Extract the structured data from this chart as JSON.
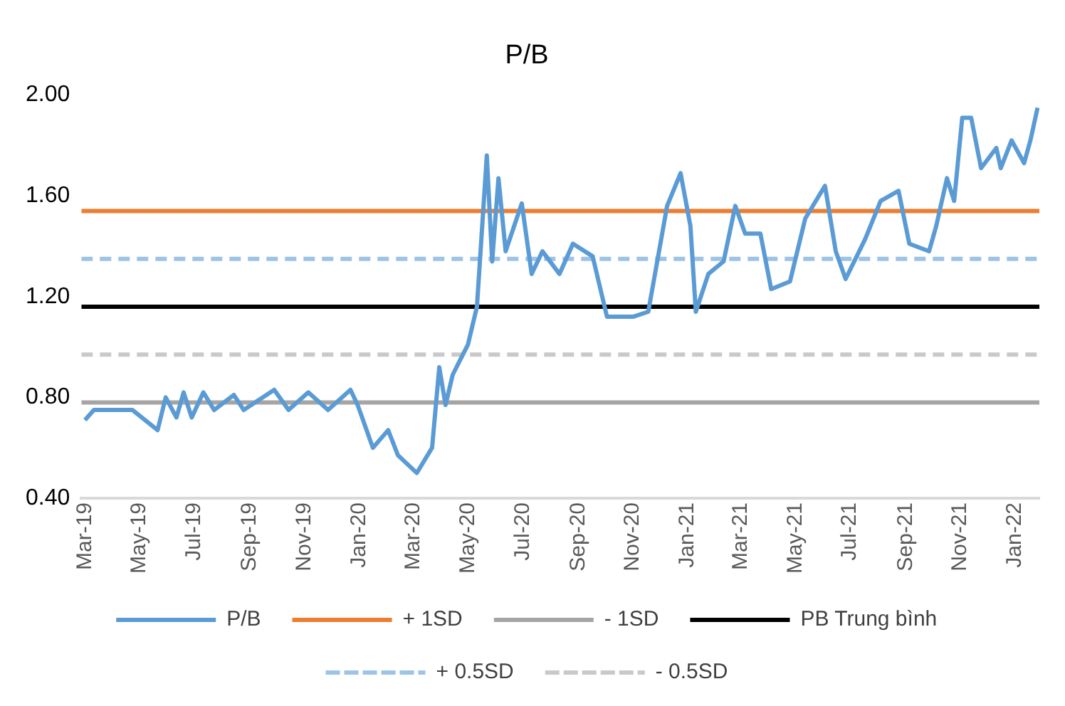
{
  "chart_data": {
    "type": "line",
    "title": "P/B",
    "x": [
      "2019-03-01",
      "2019-03-11",
      "2019-04-23",
      "2019-05-21",
      "2019-05-30",
      "2019-06-11",
      "2019-06-19",
      "2019-06-28",
      "2019-07-11",
      "2019-07-23",
      "2019-08-14",
      "2019-08-25",
      "2019-09-28",
      "2019-10-14",
      "2019-11-05",
      "2019-11-27",
      "2019-12-22",
      "2019-12-30",
      "2020-01-16",
      "2020-02-02",
      "2020-02-13",
      "2020-03-05",
      "2020-03-22",
      "2020-03-30",
      "2020-04-06",
      "2020-04-14",
      "2020-05-01",
      "2020-05-11",
      "2020-05-22",
      "2020-05-28",
      "2020-06-04",
      "2020-06-12",
      "2020-06-30",
      "2020-07-11",
      "2020-07-23",
      "2020-08-11",
      "2020-08-26",
      "2020-09-17",
      "2020-10-03",
      "2020-11-01",
      "2020-11-18",
      "2020-12-09",
      "2020-12-24",
      "2021-01-04",
      "2021-01-10",
      "2021-01-24",
      "2021-02-10",
      "2021-02-23",
      "2021-03-06",
      "2021-03-23",
      "2021-04-04",
      "2021-04-25",
      "2021-05-12",
      "2021-06-03",
      "2021-06-15",
      "2021-06-26",
      "2021-07-18",
      "2021-08-04",
      "2021-08-24",
      "2021-09-05",
      "2021-09-27",
      "2021-10-05",
      "2021-10-17",
      "2021-10-25",
      "2021-11-03",
      "2021-11-13",
      "2021-11-24",
      "2021-12-11",
      "2021-12-16",
      "2021-12-28",
      "2022-01-11",
      "2022-01-18",
      "2022-01-26"
    ],
    "series": [
      {
        "name": "P/B",
        "color": "#5b9bd5",
        "values": [
          0.71,
          0.75,
          0.75,
          0.67,
          0.8,
          0.72,
          0.82,
          0.72,
          0.82,
          0.75,
          0.81,
          0.75,
          0.83,
          0.75,
          0.82,
          0.75,
          0.83,
          0.77,
          0.6,
          0.67,
          0.57,
          0.5,
          0.6,
          0.92,
          0.77,
          0.89,
          1.01,
          1.16,
          1.76,
          1.34,
          1.67,
          1.38,
          1.57,
          1.29,
          1.38,
          1.29,
          1.41,
          1.36,
          1.12,
          1.12,
          1.14,
          1.56,
          1.69,
          1.48,
          1.14,
          1.29,
          1.34,
          1.56,
          1.45,
          1.45,
          1.23,
          1.26,
          1.51,
          1.64,
          1.38,
          1.27,
          1.43,
          1.58,
          1.62,
          1.41,
          1.38,
          1.48,
          1.67,
          1.58,
          1.91,
          1.91,
          1.71,
          1.79,
          1.71,
          1.82,
          1.73,
          1.82,
          1.95
        ]
      }
    ],
    "ref_lines": [
      {
        "axis": "y",
        "value": 1.54,
        "label": "+ 1SD",
        "color": "#ed7d31",
        "line_style": "solid"
      },
      {
        "axis": "y",
        "value": 0.78,
        "label": "- 1SD",
        "color": "#a5a5a5",
        "line_style": "solid"
      },
      {
        "axis": "y",
        "value": 1.16,
        "label": "PB Trung bình",
        "color": "#000000",
        "line_style": "solid"
      },
      {
        "axis": "y",
        "value": 1.35,
        "label": "+ 0.5SD",
        "color": "#9dc3e6",
        "line_style": "dashed"
      },
      {
        "axis": "y",
        "value": 0.97,
        "label": "- 0.5SD",
        "color": "#c9c9c9",
        "line_style": "dashed"
      }
    ],
    "xlim": [
      "2019-02-25",
      "2022-01-28"
    ],
    "xticks": [
      {
        "value": "2019-03-01",
        "label": "Mar-19"
      },
      {
        "value": "2019-05-01",
        "label": "May-19"
      },
      {
        "value": "2019-07-01",
        "label": "Jul-19"
      },
      {
        "value": "2019-09-01",
        "label": "Sep-19"
      },
      {
        "value": "2019-11-01",
        "label": "Nov-19"
      },
      {
        "value": "2020-01-01",
        "label": "Jan-20"
      },
      {
        "value": "2020-03-01",
        "label": "Mar-20"
      },
      {
        "value": "2020-05-01",
        "label": "May-20"
      },
      {
        "value": "2020-07-01",
        "label": "Jul-20"
      },
      {
        "value": "2020-09-01",
        "label": "Sep-20"
      },
      {
        "value": "2020-11-01",
        "label": "Nov-20"
      },
      {
        "value": "2021-01-01",
        "label": "Jan-21"
      },
      {
        "value": "2021-03-01",
        "label": "Mar-21"
      },
      {
        "value": "2021-05-01",
        "label": "May-21"
      },
      {
        "value": "2021-07-01",
        "label": "Jul-21"
      },
      {
        "value": "2021-09-01",
        "label": "Sep-21"
      },
      {
        "value": "2021-11-01",
        "label": "Nov-21"
      },
      {
        "value": "2022-01-01",
        "label": "Jan-22"
      }
    ],
    "ylim": [
      0.4,
      2.0
    ],
    "yticks": [
      {
        "value": 0.4,
        "label": "0.40"
      },
      {
        "value": 0.8,
        "label": "0.80"
      },
      {
        "value": 1.2,
        "label": "1.20"
      },
      {
        "value": 1.6,
        "label": "1.60"
      },
      {
        "value": 2.0,
        "label": "2.00"
      }
    ],
    "grid": false,
    "legend": "bottom",
    "marker": "none",
    "line_style": "solid"
  }
}
